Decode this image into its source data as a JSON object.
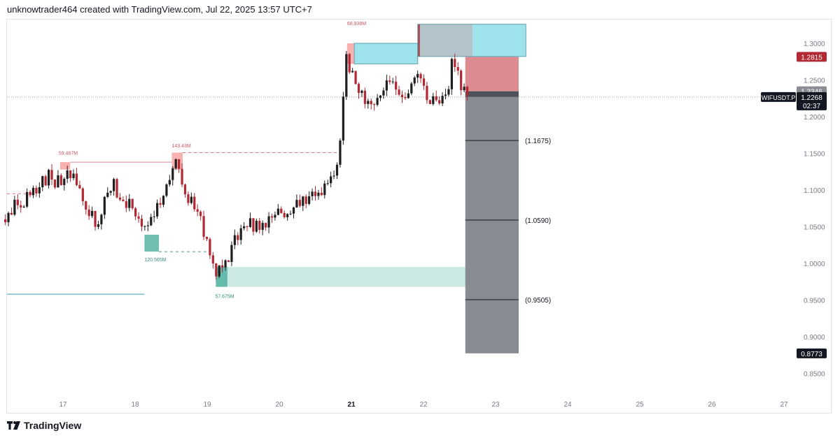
{
  "header": {
    "text": "unknowtrader464 created with TradingView.com, Jul 22, 2025 13:57 UTC+7"
  },
  "footer": {
    "brand": "TradingView",
    "logo_icon": "tradingview-logo-icon"
  },
  "colors": {
    "up": "#1e1e1e",
    "down": "#b22833",
    "supply": "#f7a9a9",
    "demand": "#5fb8a8",
    "cyan": "#9ee3ec",
    "grey": "#888b91",
    "stop": "#dd8b91"
  },
  "chart_data": {
    "type": "candlestick",
    "symbol_label": "WIFUSDT.P",
    "last_price": "1.2268",
    "countdown": "02:37",
    "ylim": [
      0.82,
      1.38
    ],
    "y_ticks": [
      "1.3000",
      "1.2500",
      "1.2000",
      "1.1500",
      "1.1000",
      "1.0500",
      "1.0000",
      "0.9500",
      "0.9000",
      "0.8500"
    ],
    "x_ticks": [
      {
        "label": "17",
        "day": 17
      },
      {
        "label": "18",
        "day": 18
      },
      {
        "label": "19",
        "day": 19
      },
      {
        "label": "20",
        "day": 20
      },
      {
        "label": "21",
        "day": 21
      },
      {
        "label": "22",
        "day": 22
      },
      {
        "label": "23",
        "day": 23
      },
      {
        "label": "24",
        "day": 24
      },
      {
        "label": "25",
        "day": 25
      },
      {
        "label": "26",
        "day": 26
      },
      {
        "label": "27",
        "day": 27
      }
    ],
    "price_badges": [
      {
        "value": "1.2815",
        "price": 1.2815,
        "style": "red"
      },
      {
        "value": "1.2346",
        "price": 1.2346,
        "style": "grey"
      },
      {
        "value": "0.8773",
        "price": 0.8773,
        "style": "dark"
      }
    ],
    "target_levels": [
      {
        "label": "(1.1675)",
        "price": 1.1675
      },
      {
        "label": "(1.0590)",
        "price": 1.059
      },
      {
        "label": "(0.9505)",
        "price": 0.9505
      }
    ],
    "volume_labels": [
      {
        "text": "59.467M",
        "day": 16.94,
        "price": 1.148,
        "kind": "supply"
      },
      {
        "text": "143.43M",
        "day": 18.51,
        "price": 1.158,
        "kind": "supply"
      },
      {
        "text": "120.565M",
        "day": 18.13,
        "price": 1.003,
        "kind": "demand"
      },
      {
        "text": "57.675M",
        "day": 19.11,
        "price": 0.953,
        "kind": "demand"
      },
      {
        "text": "68.938M",
        "day": 20.94,
        "price": 1.325,
        "kind": "supply"
      }
    ],
    "anchors": [
      {
        "day": 16.2,
        "close": 1.06
      },
      {
        "day": 16.4,
        "close": 1.085
      },
      {
        "day": 16.6,
        "close": 1.095
      },
      {
        "day": 16.78,
        "close": 1.12
      },
      {
        "day": 16.96,
        "close": 1.11
      },
      {
        "day": 17.12,
        "close": 1.125
      },
      {
        "day": 17.3,
        "close": 1.08
      },
      {
        "day": 17.45,
        "close": 1.055
      },
      {
        "day": 17.7,
        "close": 1.105
      },
      {
        "day": 17.95,
        "close": 1.075
      },
      {
        "day": 18.1,
        "close": 1.05
      },
      {
        "day": 18.25,
        "close": 1.065
      },
      {
        "day": 18.42,
        "close": 1.1
      },
      {
        "day": 18.55,
        "close": 1.14
      },
      {
        "day": 18.72,
        "close": 1.095
      },
      {
        "day": 18.88,
        "close": 1.065
      },
      {
        "day": 19.02,
        "close": 1.02
      },
      {
        "day": 19.12,
        "close": 0.985
      },
      {
        "day": 19.28,
        "close": 1.005
      },
      {
        "day": 19.5,
        "close": 1.055
      },
      {
        "day": 19.8,
        "close": 1.05
      },
      {
        "day": 20.05,
        "close": 1.07
      },
      {
        "day": 20.3,
        "close": 1.085
      },
      {
        "day": 20.55,
        "close": 1.095
      },
      {
        "day": 20.75,
        "close": 1.12
      },
      {
        "day": 20.84,
        "close": 1.16
      },
      {
        "day": 20.93,
        "close": 1.275
      },
      {
        "day": 21.1,
        "close": 1.235
      },
      {
        "day": 21.3,
        "close": 1.205
      },
      {
        "day": 21.5,
        "close": 1.245
      },
      {
        "day": 21.72,
        "close": 1.23
      },
      {
        "day": 21.95,
        "close": 1.265
      },
      {
        "day": 22.05,
        "close": 1.23
      },
      {
        "day": 22.2,
        "close": 1.21
      },
      {
        "day": 22.35,
        "close": 1.23
      },
      {
        "day": 22.4,
        "close": 1.29
      },
      {
        "day": 22.52,
        "close": 1.24
      },
      {
        "day": 22.62,
        "close": 1.2268
      }
    ]
  }
}
